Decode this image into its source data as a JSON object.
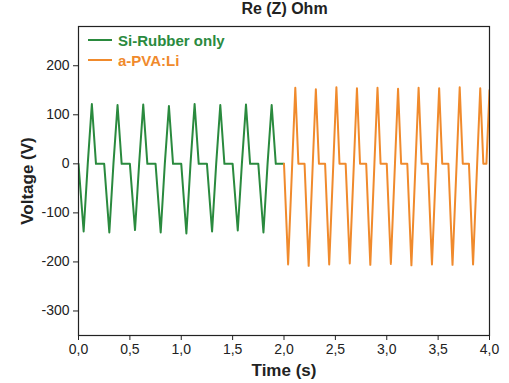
{
  "chart_data": {
    "type": "line",
    "title": "Re (Z) Ohm",
    "x_label": "Time (s)",
    "y_label": "Voltage (V)",
    "xlim": [
      0,
      4.0
    ],
    "xticks": [
      {
        "value": 0,
        "label": "0,0"
      },
      {
        "value": 0.5,
        "label": "0,5"
      },
      {
        "value": 1.0,
        "label": "1,0"
      },
      {
        "value": 1.5,
        "label": "1,5"
      },
      {
        "value": 2.0,
        "label": "2,0"
      },
      {
        "value": 2.5,
        "label": "2,5"
      },
      {
        "value": 3.0,
        "label": "3,0"
      },
      {
        "value": 3.5,
        "label": "3,5"
      },
      {
        "value": 4.0,
        "label": "4,0"
      }
    ],
    "ylim": [
      -350,
      280
    ],
    "yticks": [
      -300,
      -200,
      -100,
      0,
      100,
      200
    ],
    "grid": false,
    "legend": "upper left",
    "series": [
      {
        "name": "Si-Rubber only",
        "color": "#2a8a3e",
        "x": [
          0,
          0.05,
          0.09,
          0.13,
          0.17,
          0.25,
          0.3,
          0.34,
          0.38,
          0.42,
          0.5,
          0.55,
          0.59,
          0.63,
          0.67,
          0.75,
          0.8,
          0.84,
          0.88,
          0.92,
          1.0,
          1.05,
          1.09,
          1.13,
          1.17,
          1.25,
          1.3,
          1.34,
          1.38,
          1.42,
          1.5,
          1.55,
          1.59,
          1.63,
          1.67,
          1.75,
          1.8,
          1.84,
          1.88,
          1.92,
          2.0
        ],
        "values": [
          0,
          -138,
          0,
          122,
          0,
          0,
          -140,
          0,
          120,
          0,
          0,
          -135,
          0,
          121,
          0,
          0,
          -140,
          0,
          118,
          0,
          0,
          -142,
          0,
          122,
          0,
          0,
          -138,
          0,
          120,
          0,
          0,
          -136,
          0,
          121,
          0,
          0,
          -140,
          0,
          120,
          0,
          0
        ]
      },
      {
        "name": "a-PVA:Li",
        "color": "#f08a2c",
        "x": [
          2.0,
          2.04,
          2.08,
          2.11,
          2.14,
          2.2,
          2.24,
          2.28,
          2.31,
          2.34,
          2.4,
          2.44,
          2.48,
          2.51,
          2.54,
          2.6,
          2.64,
          2.68,
          2.71,
          2.74,
          2.8,
          2.84,
          2.88,
          2.91,
          2.94,
          3.0,
          3.04,
          3.08,
          3.11,
          3.14,
          3.2,
          3.24,
          3.28,
          3.31,
          3.34,
          3.4,
          3.44,
          3.48,
          3.51,
          3.54,
          3.6,
          3.64,
          3.68,
          3.71,
          3.74,
          3.8,
          3.84,
          3.88,
          3.91,
          3.94,
          3.97,
          4.0
        ],
        "values": [
          0,
          -205,
          0,
          155,
          0,
          0,
          -208,
          0,
          152,
          0,
          0,
          -205,
          0,
          156,
          0,
          0,
          -203,
          0,
          154,
          0,
          0,
          -206,
          0,
          155,
          0,
          0,
          -204,
          0,
          153,
          0,
          0,
          -207,
          0,
          155,
          0,
          0,
          -205,
          0,
          154,
          0,
          0,
          -206,
          0,
          156,
          0,
          0,
          -205,
          0,
          154,
          0,
          0,
          150
        ]
      }
    ]
  }
}
